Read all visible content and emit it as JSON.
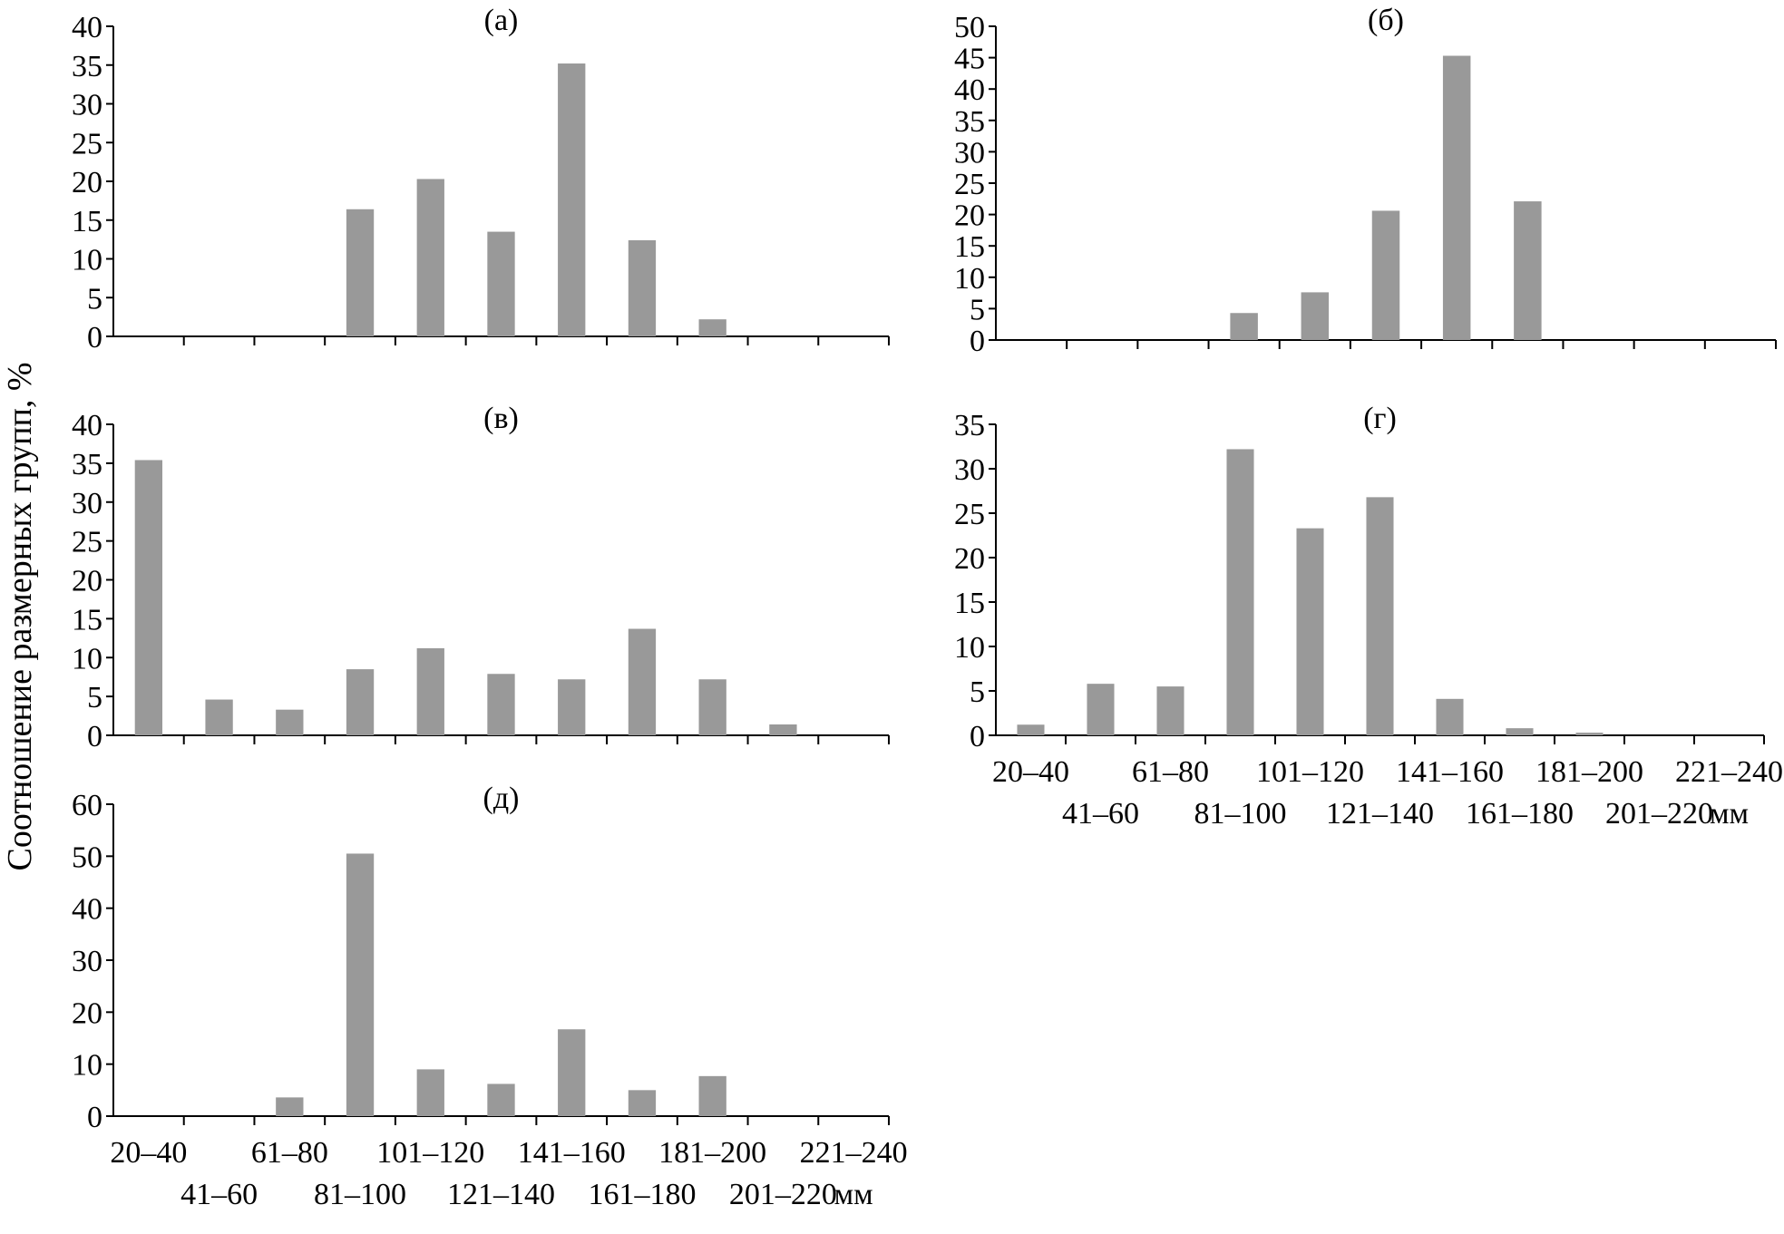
{
  "figure": {
    "y_axis_label": "Соотношение размерных групп, %",
    "x_unit": "мм",
    "bar_color": "#999999"
  },
  "chart_data": [
    {
      "type": "bar",
      "title": "(а)",
      "categories": [
        "20–40",
        "41–60",
        "61–80",
        "81–100",
        "101–120",
        "121–140",
        "141–160",
        "161–180",
        "181–200",
        "201–220",
        "221–240"
      ],
      "values": [
        0,
        0,
        0,
        16.4,
        20.3,
        13.5,
        35.2,
        12.4,
        2.2,
        0,
        0
      ],
      "ylim": [
        0,
        40
      ],
      "yticks": [
        0,
        5,
        10,
        15,
        20,
        25,
        30,
        35,
        40
      ],
      "xlabel": "",
      "ylabel": "Соотношение размерных групп, %",
      "grid": false,
      "show_x_labels": false
    },
    {
      "type": "bar",
      "title": "(б)",
      "categories": [
        "20–40",
        "41–60",
        "61–80",
        "81–100",
        "101–120",
        "121–140",
        "141–160",
        "161–180",
        "181–200",
        "201–220",
        "221–240"
      ],
      "values": [
        0,
        0,
        0,
        4.3,
        7.6,
        20.6,
        45.3,
        22.1,
        0,
        0,
        0
      ],
      "ylim": [
        0,
        50
      ],
      "yticks": [
        0,
        5,
        10,
        15,
        20,
        25,
        30,
        35,
        40,
        45,
        50
      ],
      "xlabel": "",
      "ylabel": "Соотношение размерных групп, %",
      "grid": false,
      "show_x_labels": false
    },
    {
      "type": "bar",
      "title": "(в)",
      "categories": [
        "20–40",
        "41–60",
        "61–80",
        "81–100",
        "101–120",
        "121–140",
        "141–160",
        "161–180",
        "181–200",
        "201–220",
        "221–240"
      ],
      "values": [
        35.4,
        4.6,
        3.3,
        8.5,
        11.2,
        7.9,
        7.2,
        13.7,
        7.2,
        1.4,
        0
      ],
      "ylim": [
        0,
        40
      ],
      "yticks": [
        0,
        5,
        10,
        15,
        20,
        25,
        30,
        35,
        40
      ],
      "xlabel": "",
      "ylabel": "Соотношение размерных групп, %",
      "grid": false,
      "show_x_labels": false
    },
    {
      "type": "bar",
      "title": "(г)",
      "categories": [
        "20–40",
        "41–60",
        "61–80",
        "81–100",
        "101–120",
        "121–140",
        "141–160",
        "161–180",
        "181–200",
        "201–220",
        "221–240"
      ],
      "values": [
        1.2,
        5.8,
        5.5,
        32.2,
        23.3,
        26.8,
        4.1,
        0.8,
        0.3,
        0,
        0
      ],
      "ylim": [
        0,
        35
      ],
      "yticks": [
        0,
        5,
        10,
        15,
        20,
        25,
        30,
        35
      ],
      "xlabel": "мм",
      "ylabel": "Соотношение размерных групп, %",
      "grid": false,
      "show_x_labels": true
    },
    {
      "type": "bar",
      "title": "(д)",
      "categories": [
        "20–40",
        "41–60",
        "61–80",
        "81–100",
        "101–120",
        "121–140",
        "141–160",
        "161–180",
        "181–200",
        "201–220",
        "221–240"
      ],
      "values": [
        0,
        0,
        3.6,
        50.5,
        9.0,
        6.2,
        16.7,
        5.0,
        7.7,
        0,
        0
      ],
      "ylim": [
        0,
        60
      ],
      "yticks": [
        0,
        10,
        20,
        30,
        40,
        50,
        60
      ],
      "xlabel": "мм",
      "ylabel": "Соотношение размерных групп, %",
      "grid": false,
      "show_x_labels": true
    }
  ]
}
